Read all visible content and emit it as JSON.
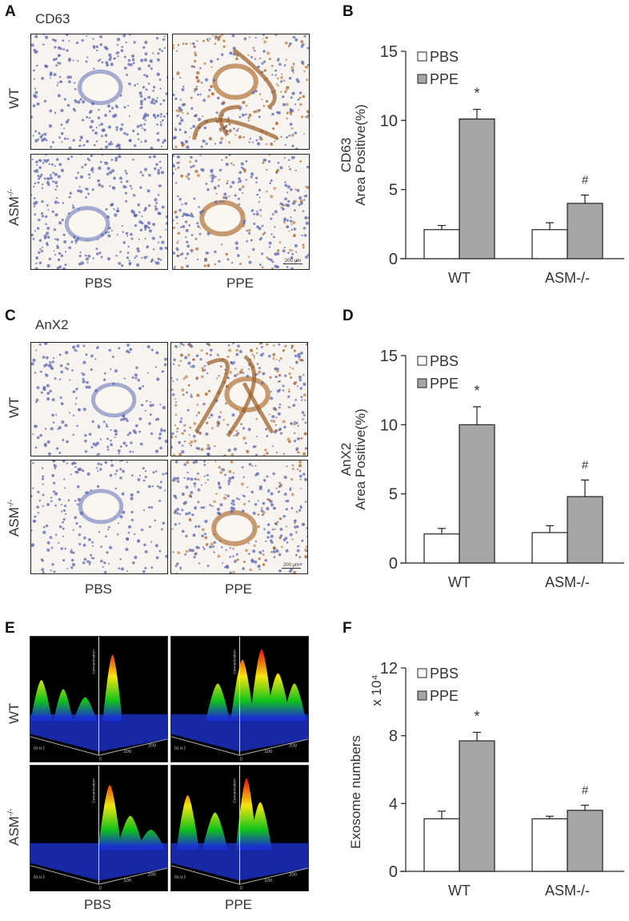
{
  "panels": {
    "A": {
      "letter": "A",
      "title": "CD63",
      "rows": [
        "WT",
        "ASM-/-"
      ],
      "cols": [
        "PBS",
        "PPE"
      ],
      "scale_bar": "200 μm"
    },
    "B": {
      "letter": "B"
    },
    "C": {
      "letter": "C",
      "title": "AnX2",
      "rows": [
        "WT",
        "ASM-/-"
      ],
      "cols": [
        "PBS",
        "PPE"
      ],
      "scale_bar": "200 μm"
    },
    "D": {
      "letter": "D"
    },
    "E": {
      "letter": "E",
      "rows": [
        "WT",
        "ASM-/-"
      ],
      "cols": [
        "PBS",
        "PPE"
      ],
      "axis_labels": {
        "z": "Concentration",
        "x_unit": "(a.u.)",
        "ticks": [
          "0",
          "100",
          "200"
        ]
      }
    },
    "F": {
      "letter": "F"
    }
  },
  "row_label_sup": "-/-",
  "colors": {
    "pbs_fill": "#ffffff",
    "ppe_fill": "#a6a6a6",
    "bar_stroke": "#222222",
    "text": "#222222"
  },
  "chart_data": [
    {
      "panel": "B",
      "type": "bar",
      "title": "",
      "ylabel_line1": "CD63",
      "ylabel_line2": "Area Positive(%)",
      "xlabel": "",
      "categories": [
        "WT",
        "ASM-/-"
      ],
      "ylim": [
        0,
        15
      ],
      "yticks": [
        0,
        5,
        10,
        15
      ],
      "legend": [
        "PBS",
        "PPE"
      ],
      "legend_position": "upper-left",
      "grid": false,
      "series": [
        {
          "name": "PBS",
          "values": [
            2.1,
            2.1
          ],
          "errors": [
            0.3,
            0.5
          ]
        },
        {
          "name": "PPE",
          "values": [
            10.1,
            4.0
          ],
          "errors": [
            0.7,
            0.6
          ]
        }
      ],
      "annotations": [
        {
          "category": "WT",
          "series": "PPE",
          "text": "*"
        },
        {
          "category": "ASM-/-",
          "series": "PPE",
          "text": "#"
        }
      ]
    },
    {
      "panel": "D",
      "type": "bar",
      "title": "",
      "ylabel_line1": "AnX2",
      "ylabel_line2": "Area Positive(%)",
      "xlabel": "",
      "categories": [
        "WT",
        "ASM-/-"
      ],
      "ylim": [
        0,
        15
      ],
      "yticks": [
        0,
        5,
        10,
        15
      ],
      "legend": [
        "PBS",
        "PPE"
      ],
      "legend_position": "upper-left",
      "grid": false,
      "series": [
        {
          "name": "PBS",
          "values": [
            2.1,
            2.2
          ],
          "errors": [
            0.4,
            0.5
          ]
        },
        {
          "name": "PPE",
          "values": [
            10.0,
            4.8
          ],
          "errors": [
            1.3,
            1.2
          ]
        }
      ],
      "annotations": [
        {
          "category": "WT",
          "series": "PPE",
          "text": "*"
        },
        {
          "category": "ASM-/-",
          "series": "PPE",
          "text": "#"
        }
      ]
    },
    {
      "panel": "F",
      "type": "bar",
      "title": "",
      "ylabel_line1": "Exosome numbers",
      "ylabel_line2": "x 10⁴",
      "xlabel": "",
      "categories": [
        "WT",
        "ASM-/-"
      ],
      "ylim": [
        0,
        12
      ],
      "yticks": [
        0,
        4,
        8,
        12
      ],
      "legend": [
        "PBS",
        "PPE"
      ],
      "legend_position": "upper-left",
      "grid": false,
      "series": [
        {
          "name": "PBS",
          "values": [
            3.1,
            3.1
          ],
          "errors": [
            0.45,
            0.15
          ]
        },
        {
          "name": "PPE",
          "values": [
            7.7,
            3.6
          ],
          "errors": [
            0.5,
            0.3
          ]
        }
      ],
      "annotations": [
        {
          "category": "WT",
          "series": "PPE",
          "text": "*"
        },
        {
          "category": "ASM-/-",
          "series": "PPE",
          "text": "#"
        }
      ]
    }
  ]
}
